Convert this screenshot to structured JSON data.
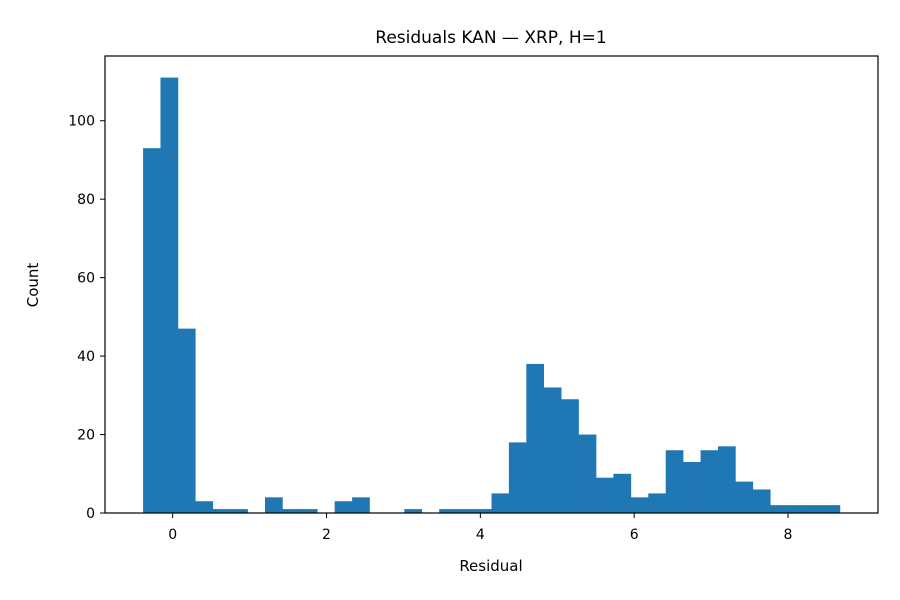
{
  "chart_data": {
    "type": "bar",
    "title": "Residuals KAN — XRP, H=1",
    "xlabel": "Residual",
    "ylabel": "Count",
    "bar_color": "#1f77b4",
    "xlim": [
      -0.88,
      9.17
    ],
    "ylim": [
      0,
      116.5
    ],
    "xticks": [
      0,
      2,
      4,
      6,
      8
    ],
    "yticks": [
      0,
      20,
      40,
      60,
      80,
      100
    ],
    "grid": false,
    "bins": [
      {
        "x0": -0.385,
        "x1": -0.159,
        "count": 93
      },
      {
        "x0": -0.159,
        "x1": 0.068,
        "count": 111
      },
      {
        "x0": 0.068,
        "x1": 0.294,
        "count": 47
      },
      {
        "x0": 0.294,
        "x1": 0.521,
        "count": 3
      },
      {
        "x0": 0.521,
        "x1": 0.747,
        "count": 1
      },
      {
        "x0": 0.747,
        "x1": 0.974,
        "count": 1
      },
      {
        "x0": 0.974,
        "x1": 1.2,
        "count": 0
      },
      {
        "x0": 1.2,
        "x1": 1.427,
        "count": 4
      },
      {
        "x0": 1.427,
        "x1": 1.653,
        "count": 1
      },
      {
        "x0": 1.653,
        "x1": 1.88,
        "count": 1
      },
      {
        "x0": 1.88,
        "x1": 2.106,
        "count": 0
      },
      {
        "x0": 2.106,
        "x1": 2.333,
        "count": 3
      },
      {
        "x0": 2.333,
        "x1": 2.559,
        "count": 4
      },
      {
        "x0": 2.559,
        "x1": 2.786,
        "count": 0
      },
      {
        "x0": 2.786,
        "x1": 3.012,
        "count": 0
      },
      {
        "x0": 3.012,
        "x1": 3.239,
        "count": 1
      },
      {
        "x0": 3.239,
        "x1": 3.465,
        "count": 0
      },
      {
        "x0": 3.465,
        "x1": 3.692,
        "count": 1
      },
      {
        "x0": 3.692,
        "x1": 3.918,
        "count": 1
      },
      {
        "x0": 3.918,
        "x1": 4.145,
        "count": 1
      },
      {
        "x0": 4.145,
        "x1": 4.371,
        "count": 5
      },
      {
        "x0": 4.371,
        "x1": 4.598,
        "count": 18
      },
      {
        "x0": 4.598,
        "x1": 4.824,
        "count": 38
      },
      {
        "x0": 4.824,
        "x1": 5.051,
        "count": 32
      },
      {
        "x0": 5.051,
        "x1": 5.277,
        "count": 29
      },
      {
        "x0": 5.277,
        "x1": 5.504,
        "count": 20
      },
      {
        "x0": 5.504,
        "x1": 5.73,
        "count": 9
      },
      {
        "x0": 5.73,
        "x1": 5.957,
        "count": 10
      },
      {
        "x0": 5.957,
        "x1": 6.183,
        "count": 4
      },
      {
        "x0": 6.183,
        "x1": 6.41,
        "count": 5
      },
      {
        "x0": 6.41,
        "x1": 6.636,
        "count": 16
      },
      {
        "x0": 6.636,
        "x1": 6.863,
        "count": 13
      },
      {
        "x0": 6.863,
        "x1": 7.089,
        "count": 16
      },
      {
        "x0": 7.089,
        "x1": 7.316,
        "count": 17
      },
      {
        "x0": 7.316,
        "x1": 7.542,
        "count": 8
      },
      {
        "x0": 7.542,
        "x1": 7.769,
        "count": 6
      },
      {
        "x0": 7.769,
        "x1": 7.995,
        "count": 2
      },
      {
        "x0": 7.995,
        "x1": 8.222,
        "count": 2
      },
      {
        "x0": 8.222,
        "x1": 8.448,
        "count": 2
      },
      {
        "x0": 8.448,
        "x1": 8.675,
        "count": 2
      }
    ]
  }
}
